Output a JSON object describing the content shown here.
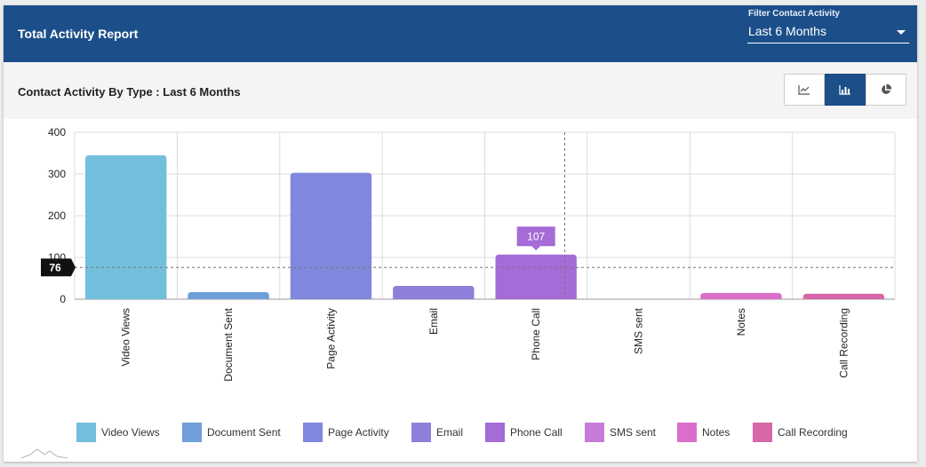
{
  "header": {
    "title": "Total Activity Report",
    "filter_label": "Filter Contact Activity",
    "filter_value": "Last 6 Months"
  },
  "section": {
    "title": "Contact Activity By Type : Last 6 Months"
  },
  "view_toggle": {
    "icons": [
      "line-chart-icon",
      "bar-chart-icon",
      "pie-chart-icon"
    ],
    "active": "bar-chart-icon"
  },
  "colors": {
    "header_bg": "#1c4f8a",
    "active_toggle": "#1c4f8a"
  },
  "chart_data": {
    "type": "bar",
    "categories": [
      "Video Views",
      "Document Sent",
      "Page Activity",
      "Email",
      "Phone Call",
      "SMS sent",
      "Notes",
      "Call Recording"
    ],
    "values": [
      345,
      17,
      303,
      32,
      107,
      0,
      15,
      13
    ],
    "colors": [
      "#72bfdc",
      "#6e9fd8",
      "#7f88dc",
      "#8d80d8",
      "#a56bd6",
      "#c77bd8",
      "#d96fcb",
      "#d667a8"
    ],
    "ylim": [
      0,
      400
    ],
    "yticks": [
      0,
      100,
      200,
      300,
      400
    ],
    "grid": true,
    "legend_position": "bottom",
    "tooltip": {
      "category": "Phone Call",
      "value": "107"
    },
    "crosshair": {
      "y_value": 76,
      "label": "76",
      "category": "Phone Call"
    }
  }
}
